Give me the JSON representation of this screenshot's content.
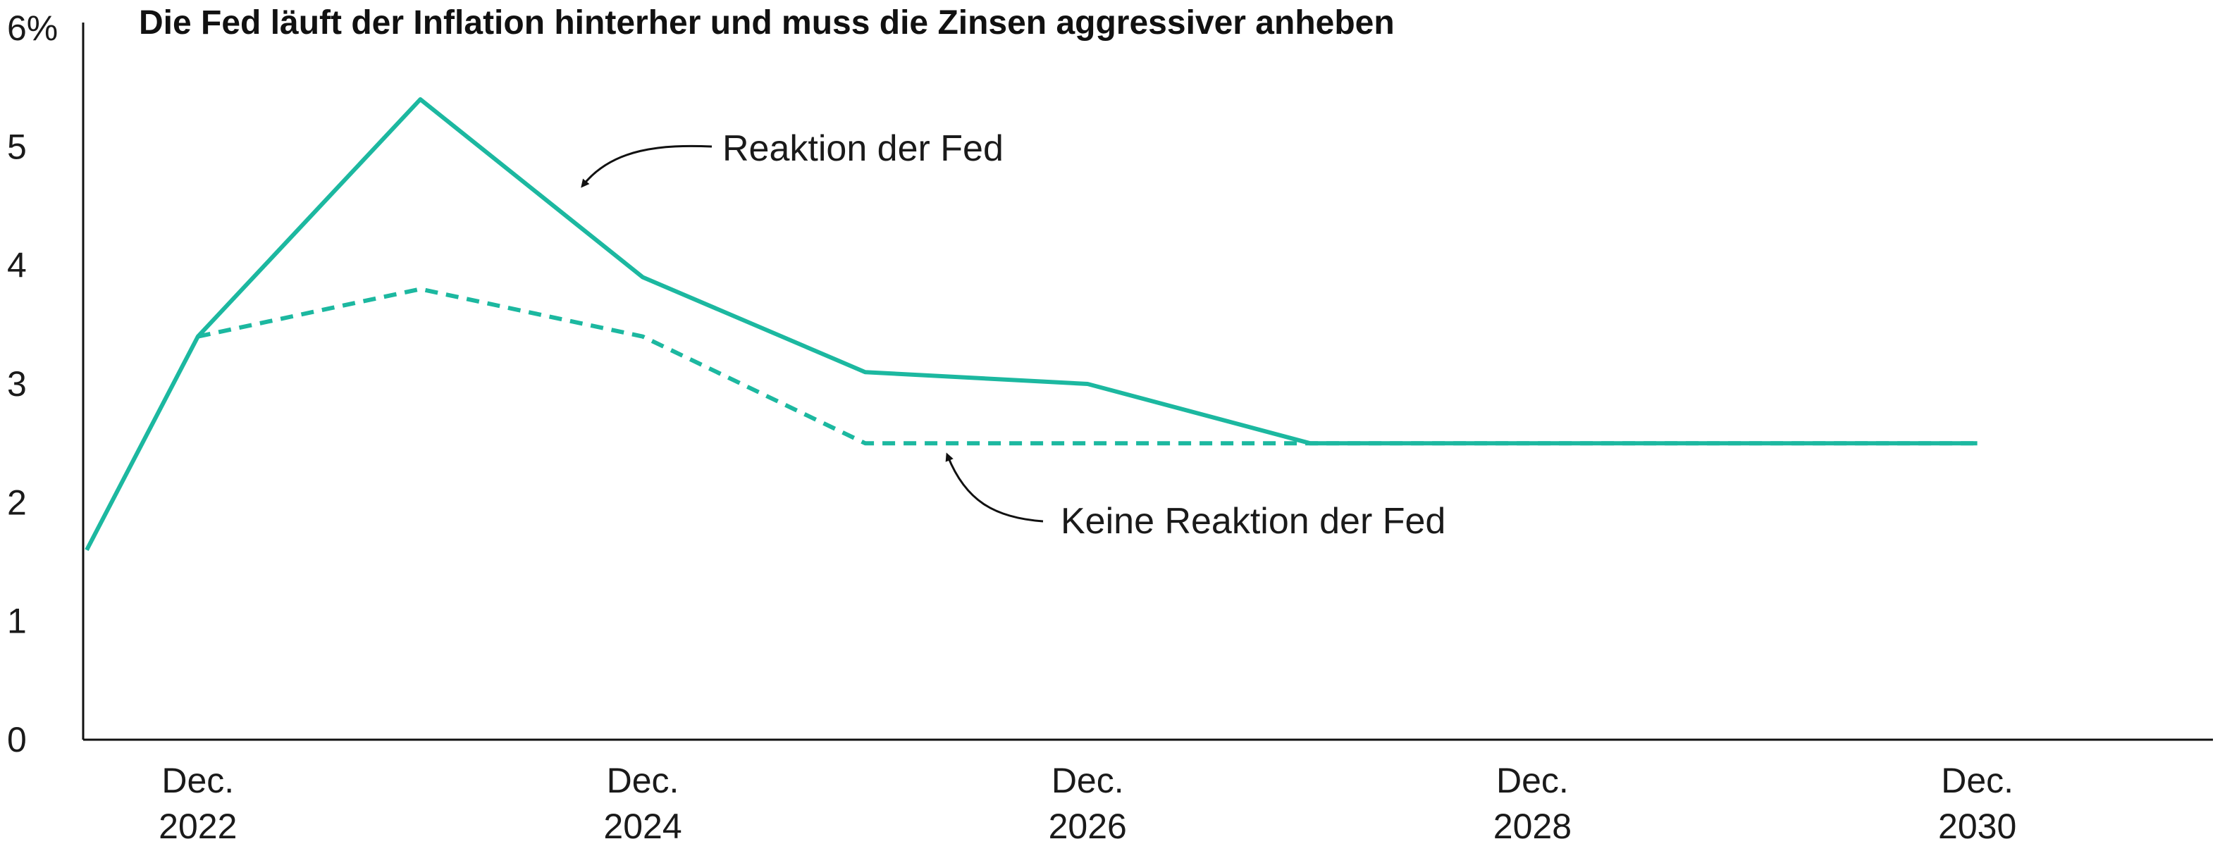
{
  "chart_data": {
    "type": "line",
    "title": "Die Fed läuft der Inflation hinterher und muss die Zinsen aggressiver anheben",
    "xlabel": "",
    "ylabel": "",
    "ylim": [
      0,
      6
    ],
    "xlim": [
      2021.8,
      2031.0
    ],
    "yticks": [
      "0",
      "1",
      "2",
      "3",
      "4",
      "5",
      "6%"
    ],
    "xticks": [
      {
        "line1": "Dec.",
        "line2": "2022",
        "x": 2022
      },
      {
        "line1": "Dec.",
        "line2": "2024",
        "x": 2024
      },
      {
        "line1": "Dec.",
        "line2": "2026",
        "x": 2026
      },
      {
        "line1": "Dec.",
        "line2": "2028",
        "x": 2028
      },
      {
        "line1": "Dec.",
        "line2": "2030",
        "x": 2030
      }
    ],
    "grid": false,
    "legend": "none",
    "series": [
      {
        "name": "Reaktion der Fed",
        "style": "solid",
        "color": "#1cb8a0",
        "x": [
          2021.5,
          2022.0,
          2023.0,
          2024.0,
          2025.0,
          2026.0,
          2027.0,
          2028.0,
          2029.0,
          2030.0
        ],
        "y": [
          1.6,
          3.4,
          5.4,
          3.9,
          3.1,
          3.0,
          2.5,
          2.5,
          2.5,
          2.5
        ]
      },
      {
        "name": "Keine Reaktion der Fed",
        "style": "dashed",
        "color": "#1cb8a0",
        "x": [
          2022.0,
          2023.0,
          2024.0,
          2025.0,
          2026.0,
          2027.0,
          2028.0,
          2029.0,
          2030.0
        ],
        "y": [
          3.4,
          3.8,
          3.4,
          2.5,
          2.5,
          2.5,
          2.5,
          2.5,
          2.5
        ]
      }
    ],
    "annotations": [
      {
        "text": "Reaktion der Fed",
        "series": 0,
        "x": 2024.0,
        "y": 5.0
      },
      {
        "text": "Keine Reaktion der Fed",
        "series": 1,
        "x": 2026.6,
        "y": 1.8
      }
    ]
  }
}
